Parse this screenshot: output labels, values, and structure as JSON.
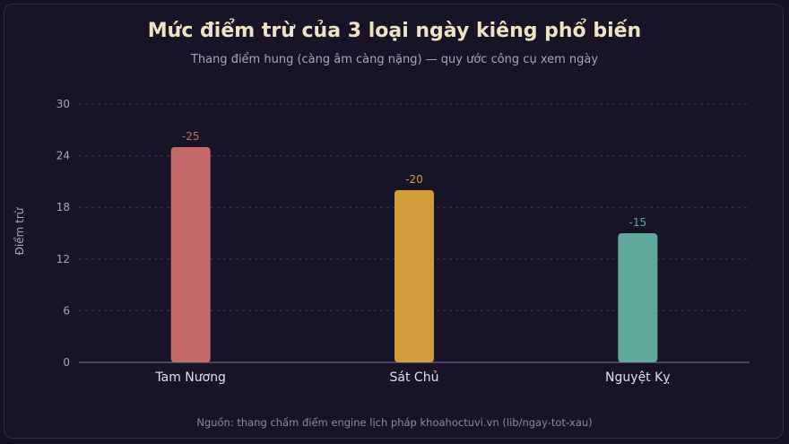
{
  "chart_data": {
    "type": "bar",
    "title": "Mức điểm trừ của 3 loại ngày kiêng phổ biến",
    "subtitle": "Thang điểm hung (càng âm càng nặng) — quy ước công cụ xem ngày",
    "ylabel": "Điểm trừ",
    "xlabel": "",
    "categories": [
      "Tam Nương",
      "Sát Chủ",
      "Nguyệt Kỵ"
    ],
    "values": [
      25,
      20,
      15
    ],
    "data_labels": [
      "-25",
      "-20",
      "-15"
    ],
    "colors": [
      "#c46a6a",
      "#d29c3a",
      "#5fa89a"
    ],
    "ylim": [
      0,
      30
    ],
    "yticks": [
      0,
      6,
      12,
      18,
      24,
      30
    ],
    "grid": true,
    "legend": "none"
  },
  "source": "Nguồn: thang chấm điểm engine lịch pháp khoahoctuvi.vn (lib/ngay-tot-xau)"
}
